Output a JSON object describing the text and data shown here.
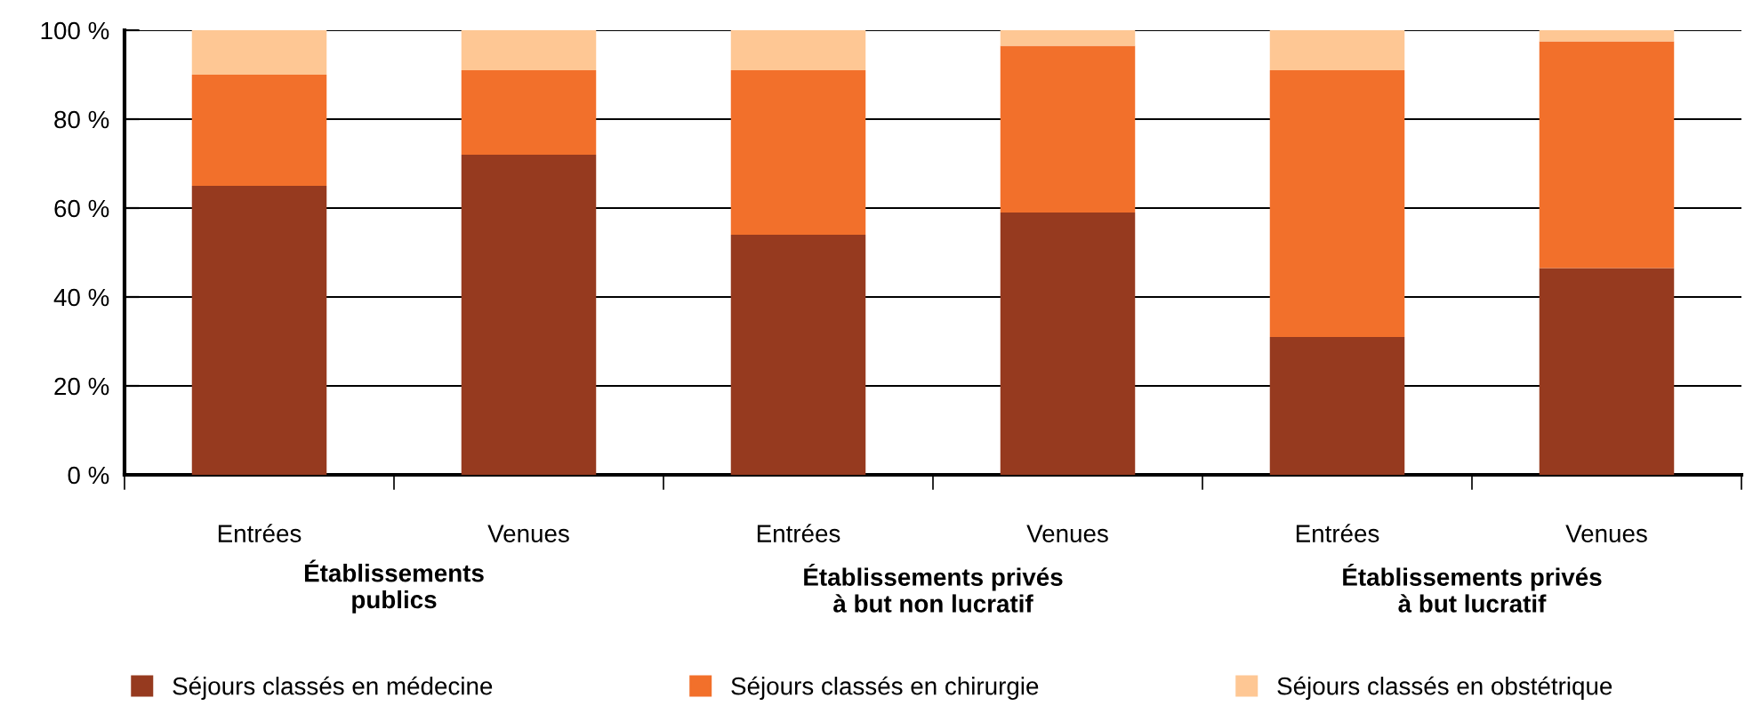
{
  "chart_data": {
    "type": "bar",
    "stacked": true,
    "categories": [
      "Entrées",
      "Venues",
      "Entrées",
      "Venues",
      "Entrées",
      "Venues"
    ],
    "series": [
      {
        "name": "Séjours classés en médecine",
        "color": "#963a1f",
        "values": [
          65,
          72,
          54,
          59,
          31,
          46.5
        ]
      },
      {
        "name": "Séjours classés en chirurgie",
        "color": "#f2702b",
        "values": [
          25,
          19,
          37,
          37.5,
          60,
          51
        ]
      },
      {
        "name": "Séjours classés en obstétrique",
        "color": "#fec794",
        "values": [
          10,
          9,
          9,
          3.5,
          9,
          2.5
        ]
      }
    ],
    "ylim": [
      0,
      100
    ],
    "yticks": [
      {
        "value": 0,
        "label": "0 %"
      },
      {
        "value": 20,
        "label": "20 %"
      },
      {
        "value": 40,
        "label": "40 %"
      },
      {
        "value": 60,
        "label": "60 %"
      },
      {
        "value": 80,
        "label": "80 %"
      },
      {
        "value": 100,
        "label": "100 %"
      }
    ],
    "grid": "y",
    "legend": "bottom",
    "annotations": [
      "Établissements\npublics",
      "Établissements privés\nà but non lucratif",
      "Établissements privés\nà but lucratif"
    ]
  }
}
